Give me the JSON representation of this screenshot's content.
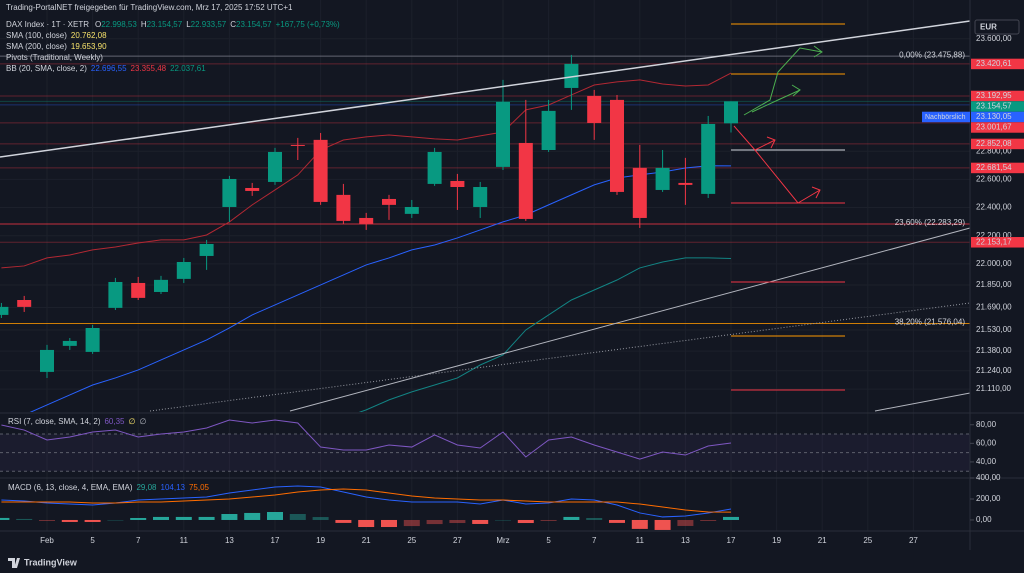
{
  "header": {
    "shared": "Trading-PortalNET freigegeben für TradingView.com, Mrz 17, 2025 17:52 UTC+1",
    "symbol": "DAX Index · 1T · XETR",
    "ohlc": [
      [
        "O",
        "22.998,53"
      ],
      [
        "H",
        "23.154,57"
      ],
      [
        "L",
        "22.933,57"
      ],
      [
        "C",
        "23.154,57"
      ]
    ],
    "change": "+167,75 (+0,73%)",
    "indicators": [
      {
        "name": "SMA (100, close)",
        "values": [
          {
            "text": "20.762,08",
            "color": "#f7e26b"
          }
        ]
      },
      {
        "name": "SMA (200, close)",
        "values": [
          {
            "text": "19.653,90",
            "color": "#f7e26b"
          }
        ]
      },
      {
        "name": "Pivots (Traditional, Weekly)",
        "values": []
      },
      {
        "name": "BB (20, SMA, close, 2)",
        "values": [
          {
            "text": "22.696,55",
            "color": "#2962ff"
          },
          {
            "text": "23.355,48",
            "color": "#f23645"
          },
          {
            "text": "22.037,61",
            "color": "#089981"
          }
        ]
      }
    ],
    "currency": "EUR",
    "session": "Nachbörslich",
    "brand": "TradingView"
  },
  "chart_data": [
    {
      "type": "candlestick",
      "categories": [
        null,
        null,
        "Feb",
        null,
        "5",
        null,
        "7",
        null,
        "11",
        null,
        "13",
        null,
        "17",
        null,
        "19",
        null,
        "21",
        null,
        "25",
        null,
        "27",
        null,
        "Mrz",
        null,
        "5",
        null,
        "7",
        null,
        "11",
        null,
        "13",
        null,
        "17"
      ],
      "x_future_labels": [
        "19",
        "21",
        "25",
        "27"
      ],
      "open": [
        21637,
        21743,
        21232,
        21417,
        21374,
        21687,
        21864,
        21800,
        21893,
        22056,
        22404,
        22539,
        22582,
        22845,
        22881,
        22490,
        22326,
        22461,
        22355,
        22568,
        22589,
        22404,
        22689,
        22859,
        22809,
        23250,
        23193,
        23165,
        22682,
        22525,
        22575,
        22497,
        22998.53
      ],
      "high": [
        21722,
        21772,
        21424,
        21473,
        21566,
        21900,
        21907,
        21914,
        22042,
        22170,
        22625,
        22575,
        22824,
        22895,
        22930,
        22568,
        22362,
        22490,
        22454,
        22824,
        22639,
        22582,
        23307,
        23165,
        23165,
        23485,
        23236,
        23200,
        22845,
        22809,
        22753,
        23051,
        23154.57
      ],
      "low": [
        21615,
        21658,
        21189,
        21388,
        21360,
        21672,
        21743,
        21786,
        21864,
        21957,
        22298,
        22483,
        22561,
        22738,
        22419,
        22284,
        22241,
        22312,
        22326,
        22554,
        22383,
        22326,
        22667,
        22305,
        22795,
        23094,
        22881,
        22490,
        22255,
        22511,
        22419,
        22468,
        22933.57
      ],
      "close": [
        21694,
        21694,
        21388,
        21452,
        21544,
        21871,
        21758,
        21886,
        22013,
        22141,
        22603,
        22518,
        22795,
        22838,
        22440,
        22305,
        22284,
        22419,
        22404,
        22795,
        22546,
        22546,
        23151,
        22319,
        23087,
        23421,
        23001,
        22511,
        22326,
        22682,
        22561,
        22994,
        23154.57
      ],
      "up_color": "#089981",
      "down_color": "#f23645",
      "ylim": [
        20947,
        23875
      ],
      "yticks": [
        {
          "value": 23600,
          "label": "23.600,00"
        },
        {
          "value": 22800,
          "label": "22.800,00"
        },
        {
          "value": 22600,
          "label": "22.600,00"
        },
        {
          "value": 22400,
          "label": "22.400,00"
        },
        {
          "value": 22200,
          "label": "22.200,00"
        },
        {
          "value": 22000,
          "label": "22.000,00"
        },
        {
          "value": 21850,
          "label": "21.850,00"
        },
        {
          "value": 21690,
          "label": "21.690,00"
        },
        {
          "value": 21530,
          "label": "21.530,00"
        },
        {
          "value": 21380,
          "label": "21.380,00"
        },
        {
          "value": 21240,
          "label": "21.240,00"
        },
        {
          "value": 21110,
          "label": "21.110,00"
        }
      ],
      "bands": {
        "upper": [
          21971,
          21985,
          22042,
          22063,
          22099,
          22120,
          22148,
          22170,
          22170,
          22205,
          22298,
          22419,
          22525,
          22632,
          22809,
          22880,
          22902,
          22916,
          22902,
          22888,
          22880,
          22909,
          22937,
          23094,
          23129,
          23200,
          23271,
          23293,
          23307,
          23278,
          23264,
          23271,
          23355.48
        ],
        "basis": [
          20891,
          20926,
          20997,
          21068,
          21139,
          21189,
          21246,
          21317,
          21388,
          21459,
          21544,
          21637,
          21708,
          21779,
          21850,
          21921,
          21992,
          22042,
          22099,
          22134,
          22184,
          22241,
          22298,
          22347,
          22419,
          22490,
          22561,
          22610,
          22632,
          22653,
          22681,
          22697,
          22696.55
        ],
        "lower": [
          20464,
          20478,
          20500,
          20535,
          20571,
          20592,
          20606,
          20620,
          20642,
          20677,
          20713,
          20748,
          20784,
          20819,
          20855,
          20905,
          20962,
          21033,
          21090,
          21139,
          21189,
          21281,
          21352,
          21530,
          21637,
          21743,
          21814,
          21885,
          21971,
          22013,
          22042,
          22042,
          22037.61
        ],
        "upper_color": "#b22833",
        "basis_color": "#2962ff",
        "lower_color": "#138484"
      },
      "price_labels": [
        {
          "value": 23420.61,
          "label": "23.420,61",
          "color": "#f23645"
        },
        {
          "value": 23192.95,
          "label": "23.192,95",
          "color": "#f23645"
        },
        {
          "value": 23154.57,
          "label": "23.154,57",
          "color": "#089981"
        },
        {
          "value": 23130.05,
          "label": "23.130,05",
          "color": "#2962ff"
        },
        {
          "value": 23001.67,
          "label": "23.001,67",
          "color": "#f23645"
        },
        {
          "value": 22852.08,
          "label": "22.852,08",
          "color": "#f23645"
        },
        {
          "value": 22681.54,
          "label": "22.681,54",
          "color": "#f23645"
        },
        {
          "value": 22153.17,
          "label": "22.153,17",
          "color": "#f23645"
        }
      ],
      "fib_levels": [
        {
          "label": "0,00% (23.475,88)",
          "value": 23475.88,
          "color": "#787b86"
        },
        {
          "label": "23,60% (22.283,29)",
          "value": 22283.29,
          "color": "#f23645"
        },
        {
          "label": "38,20% (21.576,04)",
          "value": 21576.04,
          "color": "#ff9800"
        }
      ]
    },
    {
      "type": "line",
      "title": "RSI (7, close, SMA, 14, 2)",
      "legend_values": [
        {
          "text": "60,35",
          "color": "#7e57c2"
        },
        {
          "text": "∅",
          "color": "#f7e26b"
        },
        {
          "text": "∅",
          "color": "#b2b5be"
        }
      ],
      "values": [
        79.7,
        74.3,
        63.6,
        66.8,
        72.2,
        74.3,
        66.8,
        70.0,
        72.2,
        76.5,
        85.1,
        81.9,
        85.1,
        81.9,
        56.0,
        52.8,
        52.8,
        58.2,
        56.0,
        69.0,
        58.2,
        55.0,
        72.2,
        45.3,
        63.6,
        66.8,
        58.2,
        50.7,
        43.1,
        50.7,
        47.4,
        57.1,
        60.35
      ],
      "color": "#7e57c2",
      "levels": [
        70,
        50,
        30
      ],
      "ylim": [
        22.7,
        90.5
      ],
      "yticks": [
        {
          "value": 80,
          "label": "80,00"
        },
        {
          "value": 60,
          "label": "60,00"
        },
        {
          "value": 40,
          "label": "40,00"
        }
      ]
    },
    {
      "type": "macd",
      "title": "MACD (6, 13, close, 4, EMA, EMA)",
      "legend_values": [
        {
          "text": "29,08",
          "color": "#26a69a"
        },
        {
          "text": "104,13",
          "color": "#2962ff"
        },
        {
          "text": "75,05",
          "color": "#ff6d00"
        }
      ],
      "histogram": [
        19.5,
        10,
        -9,
        -19,
        -19,
        0,
        19,
        29,
        29,
        29,
        57,
        67,
        76,
        57,
        28,
        -28,
        -67,
        -67,
        -58,
        -39,
        -29,
        -38,
        0,
        -29,
        -9,
        29,
        19,
        -28,
        -85,
        -95,
        -57,
        -9,
        29.08
      ],
      "macd": [
        190,
        181,
        162,
        152,
        143,
        162,
        190,
        200,
        210,
        219,
        257,
        286,
        314,
        324,
        314,
        267,
        219,
        190,
        171,
        171,
        171,
        152,
        190,
        152,
        162,
        200,
        190,
        143,
        67,
        29,
        38,
        67,
        104.13
      ],
      "signal": [
        171,
        171,
        171,
        171,
        162,
        162,
        171,
        171,
        181,
        190,
        200,
        219,
        238,
        267,
        286,
        295,
        286,
        257,
        229,
        210,
        200,
        190,
        190,
        181,
        171,
        171,
        171,
        171,
        152,
        124,
        95,
        76,
        75.05
      ],
      "macd_color": "#2962ff",
      "signal_color": "#ff6d00",
      "hist_up_color": "#26a69a",
      "hist_down_color": "#ef5350",
      "ylim": [
        -105,
        400
      ],
      "yticks": [
        {
          "value": 400,
          "label": "400,00"
        },
        {
          "value": 200,
          "label": "200,00"
        },
        {
          "value": 0,
          "label": "0,00"
        }
      ]
    }
  ]
}
